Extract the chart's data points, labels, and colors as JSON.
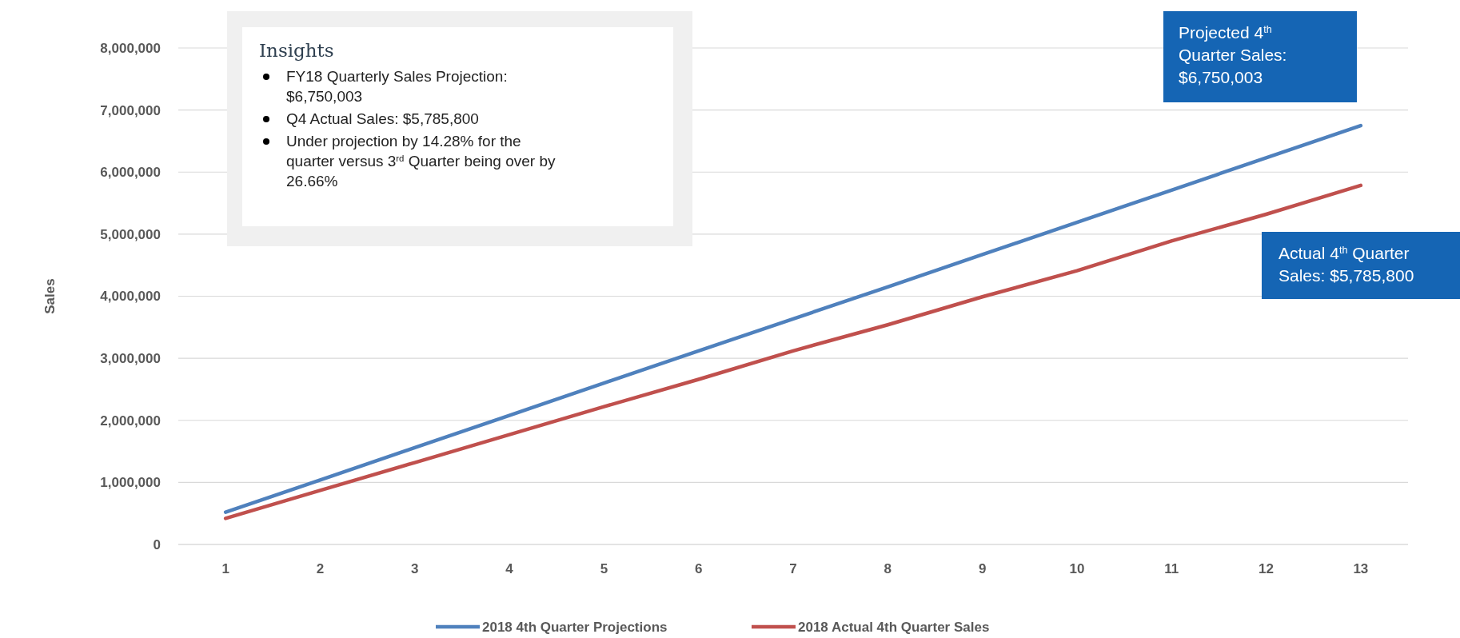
{
  "chart_data": {
    "type": "line",
    "ylabel": "Sales",
    "categories": [
      "1",
      "2",
      "3",
      "4",
      "5",
      "6",
      "7",
      "8",
      "9",
      "10",
      "11",
      "12",
      "13"
    ],
    "series": [
      {
        "name": "2018 4th Quarter Projections",
        "color": "#4f81bd",
        "values": [
          520000,
          1040000,
          1560000,
          2080000,
          2600000,
          3120000,
          3635000,
          4150000,
          4670000,
          5190000,
          5710000,
          6230000,
          6750003
        ]
      },
      {
        "name": "2018 Actual 4th Quarter Sales",
        "color": "#c0504d",
        "values": [
          420000,
          870000,
          1320000,
          1770000,
          2220000,
          2660000,
          3120000,
          3540000,
          3990000,
          4410000,
          4890000,
          5320000,
          5785800
        ]
      }
    ],
    "ylim": [
      0,
      8000000
    ],
    "yticks": [
      {
        "value": 0,
        "label": "0"
      },
      {
        "value": 1000000,
        "label": "1,000,000"
      },
      {
        "value": 2000000,
        "label": "2,000,000"
      },
      {
        "value": 3000000,
        "label": "3,000,000"
      },
      {
        "value": 4000000,
        "label": "4,000,000"
      },
      {
        "value": 5000000,
        "label": "5,000,000"
      },
      {
        "value": 6000000,
        "label": "6,000,000"
      },
      {
        "value": 7000000,
        "label": "7,000,000"
      },
      {
        "value": 8000000,
        "label": "8,000,000"
      }
    ],
    "grid": "y",
    "legend": "bottom",
    "marker": "none",
    "line_style": "solid",
    "annotations": [
      "Insights",
      "FY18 Quarterly Sales Projection: $6,750,003",
      "Q4 Actual Sales: $5,785,800",
      "Under projection by 14.28% for the quarter versus 3$^{rd}$ Quarter being over by 26.66%",
      "Projected 4$^{th}$ Quarter Sales: $6,750,003",
      "Actual 4$^{th}$ Quarter Sales: $5,785,800"
    ]
  }
}
